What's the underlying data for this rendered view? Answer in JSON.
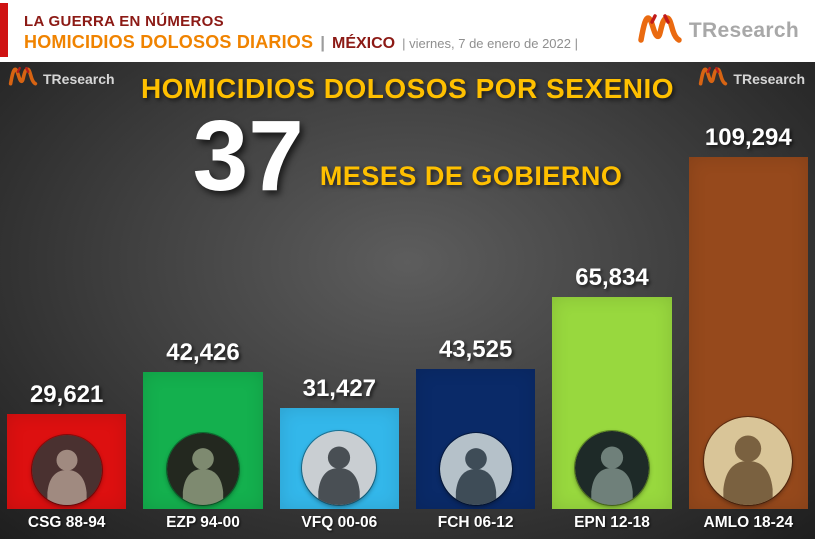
{
  "brand": "TResearch",
  "header": {
    "kicker": "LA GUERRA EN NÚMEROS",
    "title": "HOMICIDIOS DOLOSOS DIARIOS",
    "separator": "|",
    "country": "MÉXICO",
    "date": "|  viernes, 7 de enero de 2022  |"
  },
  "chart": {
    "title": "HOMICIDIOS DOLOSOS POR SEXENIO",
    "months_number": "37",
    "months_label": "MESES DE GOBIERNO"
  },
  "chart_data": {
    "type": "bar",
    "title": "HOMICIDIOS DOLOSOS POR SEXENIO",
    "categories": [
      "CSG 88-94",
      "EZP 94-00",
      "VFQ 00-06",
      "FCH 06-12",
      "EPN 12-18",
      "AMLO 18-24"
    ],
    "values": [
      29621,
      42426,
      31427,
      43525,
      65834,
      109294
    ],
    "value_labels": [
      "29,621",
      "42,426",
      "31,427",
      "43,525",
      "65,834",
      "109,294"
    ],
    "bar_colors": [
      "#dd1010",
      "#14b04e",
      "#33b7ea",
      "#0a2a68",
      "#98d83e",
      "#96491c"
    ],
    "photo_tones": [
      {
        "bg": "#4a3130",
        "fg": "#a08a80",
        "size": 70
      },
      {
        "bg": "#23281f",
        "fg": "#7e8a70",
        "size": 72
      },
      {
        "bg": "#c9ced2",
        "fg": "#494f54",
        "size": 74
      },
      {
        "bg": "#b5c1c9",
        "fg": "#3e4c57",
        "size": 72
      },
      {
        "bg": "#1e2a28",
        "fg": "#6f807a",
        "size": 74
      },
      {
        "bg": "#d9c598",
        "fg": "#7a6140",
        "size": 88
      }
    ],
    "xlabel": "",
    "ylabel": "",
    "ylim": [
      0,
      110000
    ],
    "grid": false,
    "legend": false
  }
}
